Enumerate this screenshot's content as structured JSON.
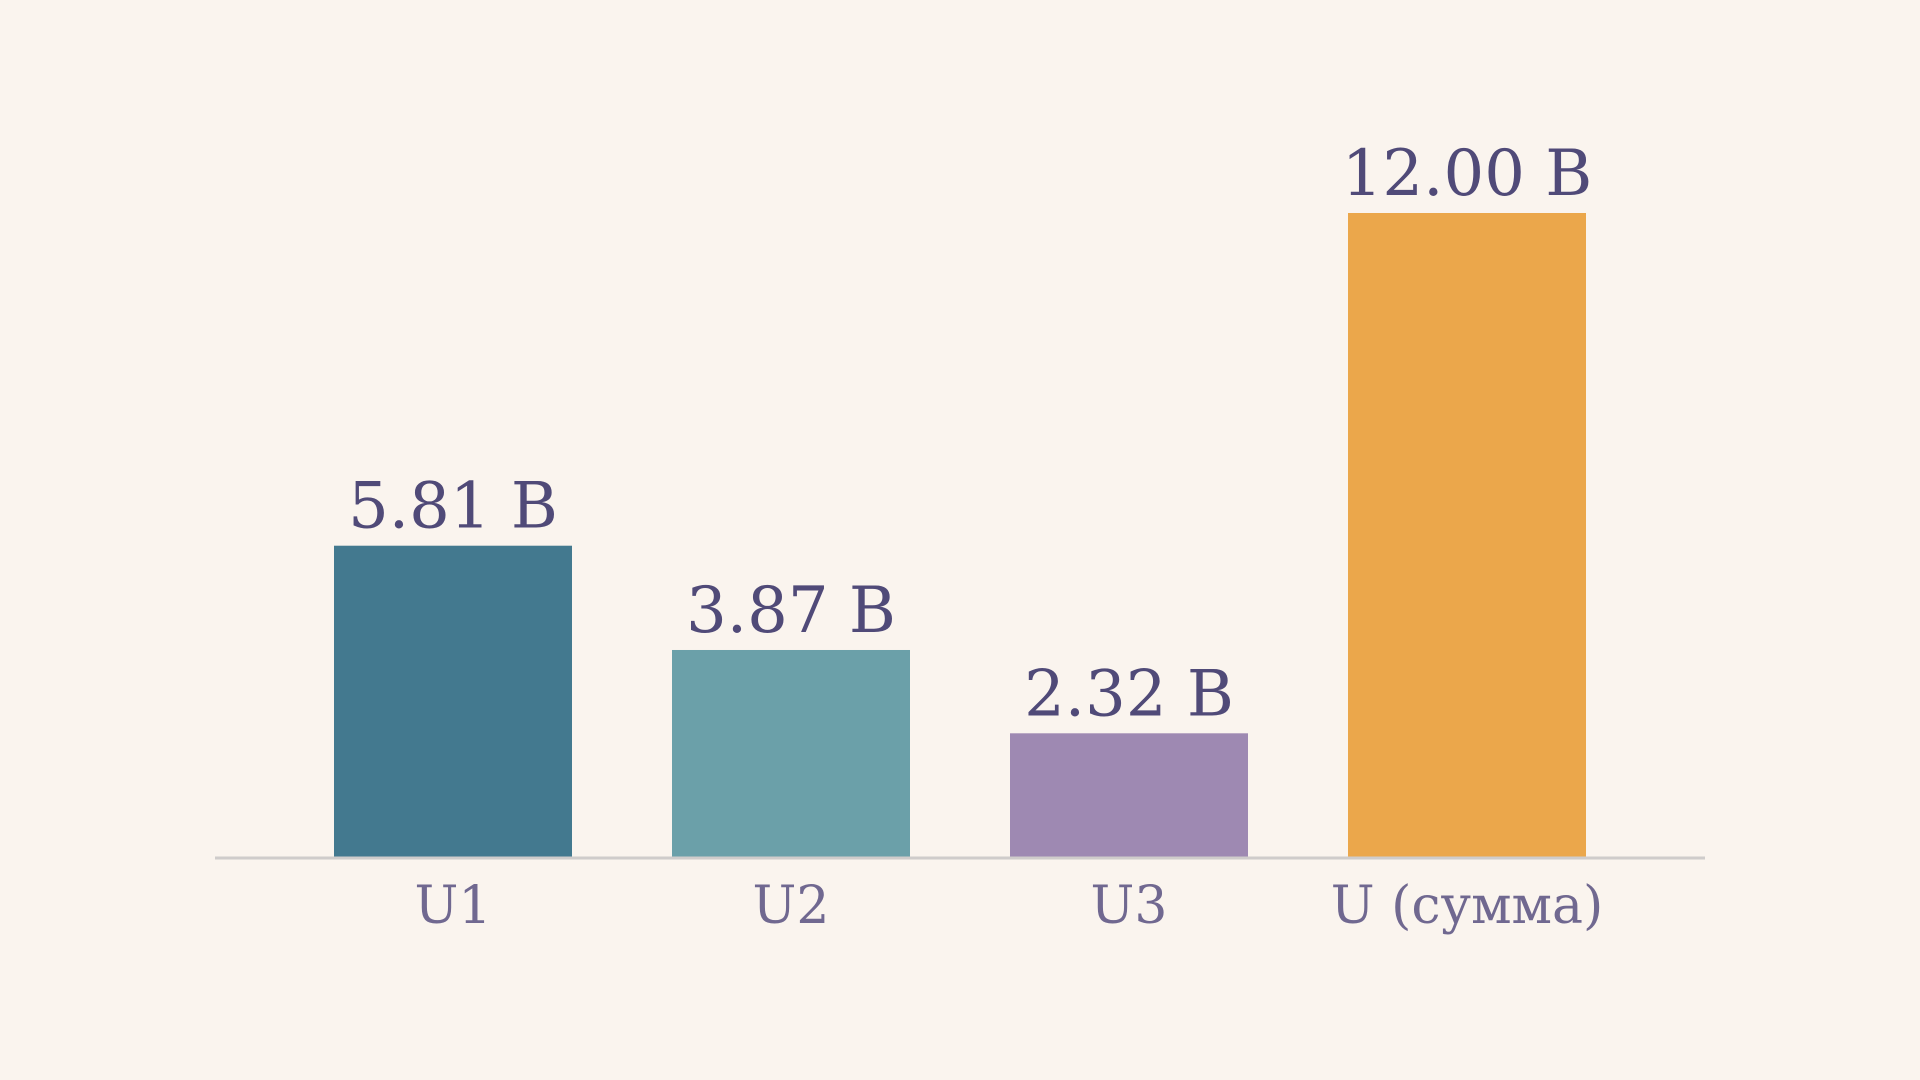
{
  "chart_data": {
    "type": "bar",
    "categories": [
      "U1",
      "U2",
      "U3",
      "U (сумма)"
    ],
    "values": [
      5.81,
      3.87,
      2.32,
      12.0
    ],
    "value_labels": [
      "5.81 В",
      "3.87 В",
      "2.32 В",
      "12.00 В"
    ],
    "unit": "В",
    "ylim": [
      0,
      12.0
    ],
    "title": "",
    "xlabel": "",
    "ylabel": "",
    "grid": false,
    "legend": "none",
    "colors": [
      "#43798F",
      "#6BA0A9",
      "#9E89B2",
      "#EBA74B"
    ]
  },
  "theme": {
    "background": "#FAF4EE",
    "axis_color": "#CFCCCB",
    "value_text_color": "#504A78",
    "category_text_color": "#706890"
  }
}
